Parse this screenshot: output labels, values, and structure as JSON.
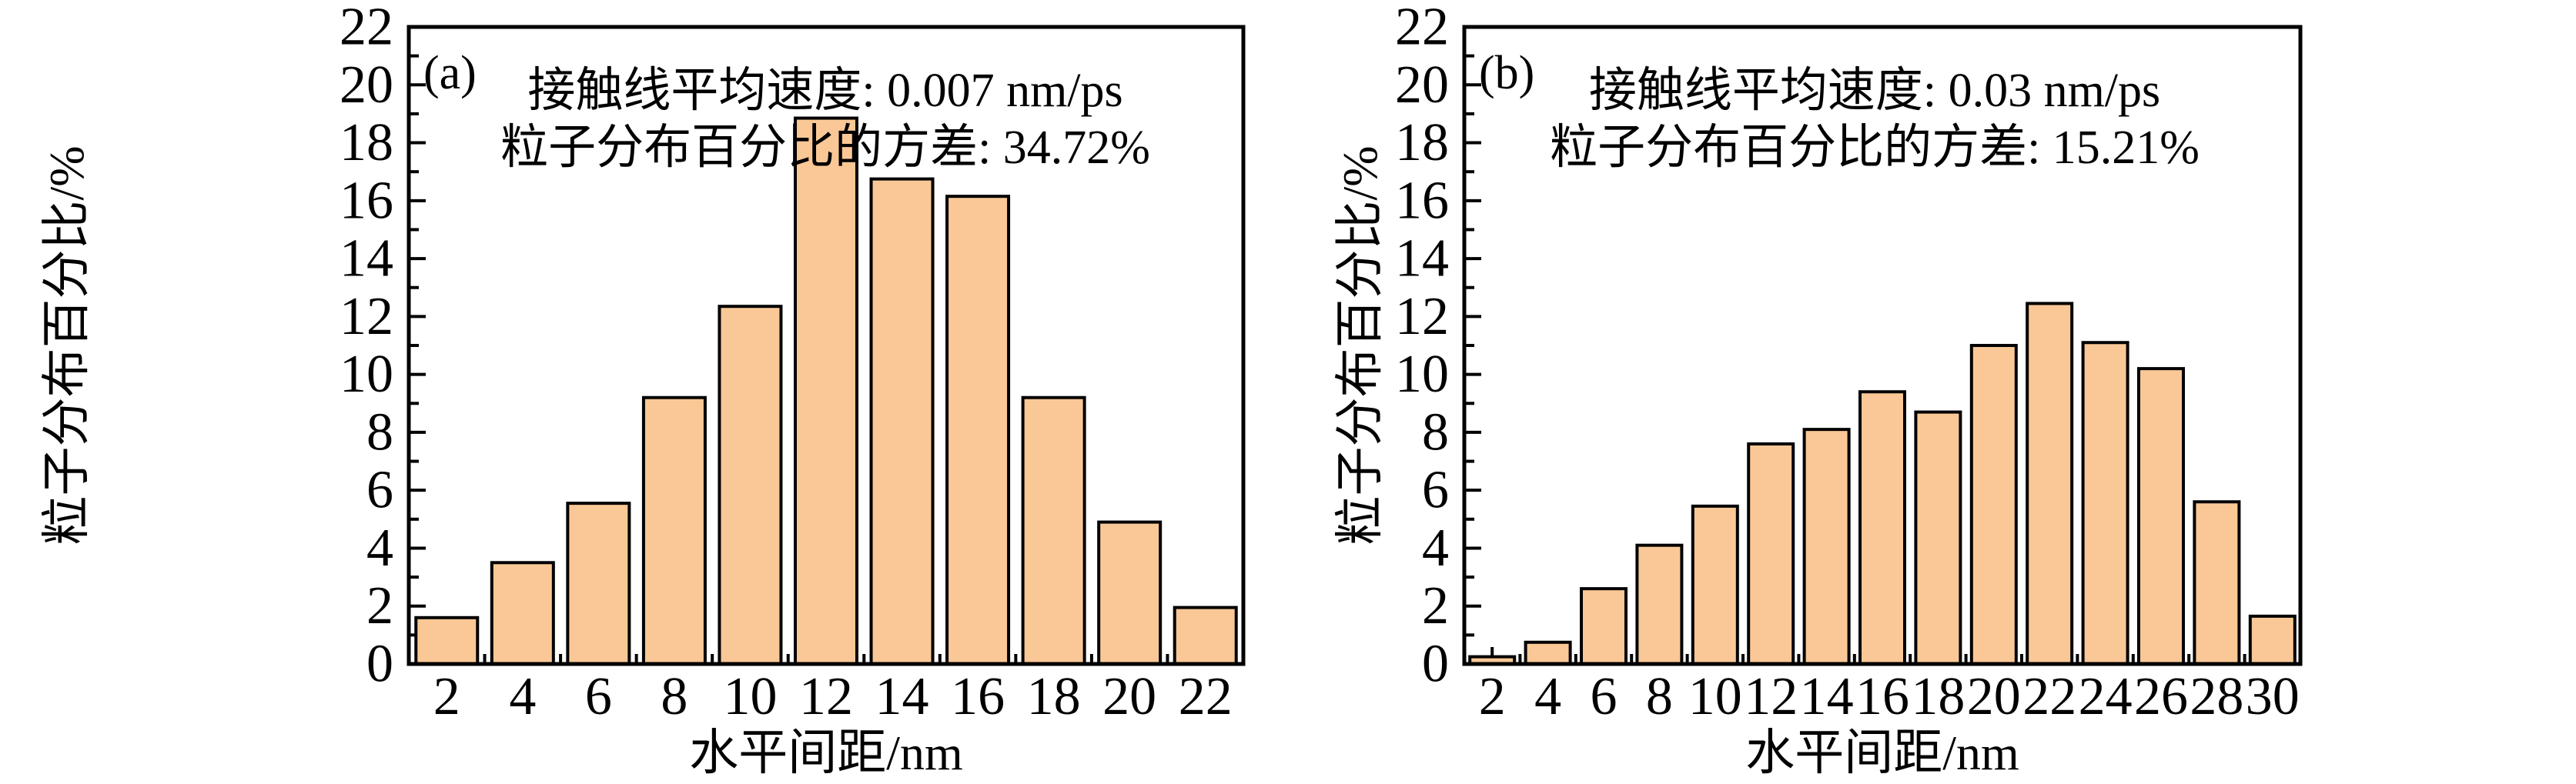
{
  "figure": {
    "background": "#ffffff",
    "bar_fill": "#FAC896",
    "bar_stroke": "#000000",
    "axis_color": "#000000",
    "text_color": "#000000"
  },
  "chart_data": [
    {
      "type": "bar",
      "panel_label": "(a)",
      "annotations": [
        "接触线平均速度: 0.007 nm/ps",
        "粒子分布百分比的方差: 34.72%"
      ],
      "xlabel": "水平间距/nm",
      "ylabel": "粒子分布百分比/%",
      "categories": [
        2,
        4,
        6,
        8,
        10,
        12,
        14,
        16,
        18,
        20,
        22
      ],
      "values": [
        1.6,
        3.5,
        5.55,
        9.2,
        12.35,
        18.85,
        16.75,
        16.15,
        9.2,
        4.9,
        1.95
      ],
      "ylim": [
        0,
        22
      ],
      "ytick_step": 2,
      "yminor_step": 1,
      "xlim": [
        1,
        23
      ],
      "xtick_step": 2,
      "grid": false,
      "legend": null
    },
    {
      "type": "bar",
      "panel_label": "(b)",
      "annotations": [
        "接触线平均速度: 0.03 nm/ps",
        "粒子分布百分比的方差: 15.21%"
      ],
      "xlabel": "水平间距/nm",
      "ylabel": "粒子分布百分比/%",
      "categories": [
        2,
        4,
        6,
        8,
        10,
        12,
        14,
        16,
        18,
        20,
        22,
        24,
        26,
        28,
        30
      ],
      "values": [
        0.25,
        0.75,
        2.6,
        4.1,
        5.45,
        7.6,
        8.1,
        9.4,
        8.7,
        11.0,
        12.45,
        11.1,
        10.2,
        5.6,
        1.65
      ],
      "ylim": [
        0,
        22
      ],
      "ytick_step": 2,
      "yminor_step": 1,
      "xlim": [
        1,
        31
      ],
      "xtick_step": 2,
      "grid": false,
      "legend": null
    }
  ]
}
